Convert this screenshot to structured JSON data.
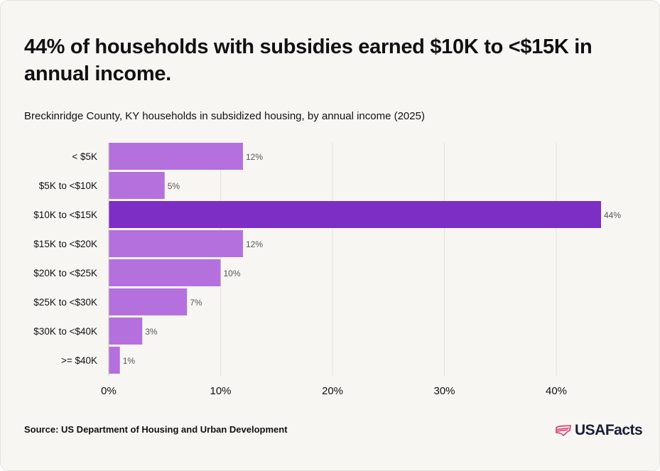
{
  "title": "44% of households with subsidies earned $10K to <$15K in annual income.",
  "subtitle": "Breckinridge County, KY households in subsidized housing, by annual income (2025)",
  "source": "Source: US Department of Housing and Urban Development",
  "brand": {
    "name": "USAFacts",
    "icon": "us-map-flag-icon"
  },
  "colors": {
    "bar": "#b470dc",
    "highlight": "#7d2ec4",
    "grid": "#e3e1dc",
    "text": "#111111",
    "label": "#555555"
  },
  "chart_data": {
    "type": "bar",
    "orientation": "horizontal",
    "categories": [
      "< $5K",
      "$5K to <$10K",
      "$10K to <$15K",
      "$15K to <$20K",
      "$20K to <$25K",
      "$25K to <$30K",
      "$30K to <$40K",
      ">= $40K"
    ],
    "values": [
      12,
      5,
      44,
      12,
      10,
      7,
      3,
      1
    ],
    "value_labels": [
      "12%",
      "5%",
      "44%",
      "12%",
      "10%",
      "7%",
      "3%",
      "1%"
    ],
    "highlight_index": 2,
    "xlim": [
      0,
      45
    ],
    "xticks": [
      0,
      10,
      20,
      30,
      40
    ],
    "xtick_labels": [
      "0%",
      "10%",
      "20%",
      "30%",
      "40%"
    ],
    "grid": true
  }
}
